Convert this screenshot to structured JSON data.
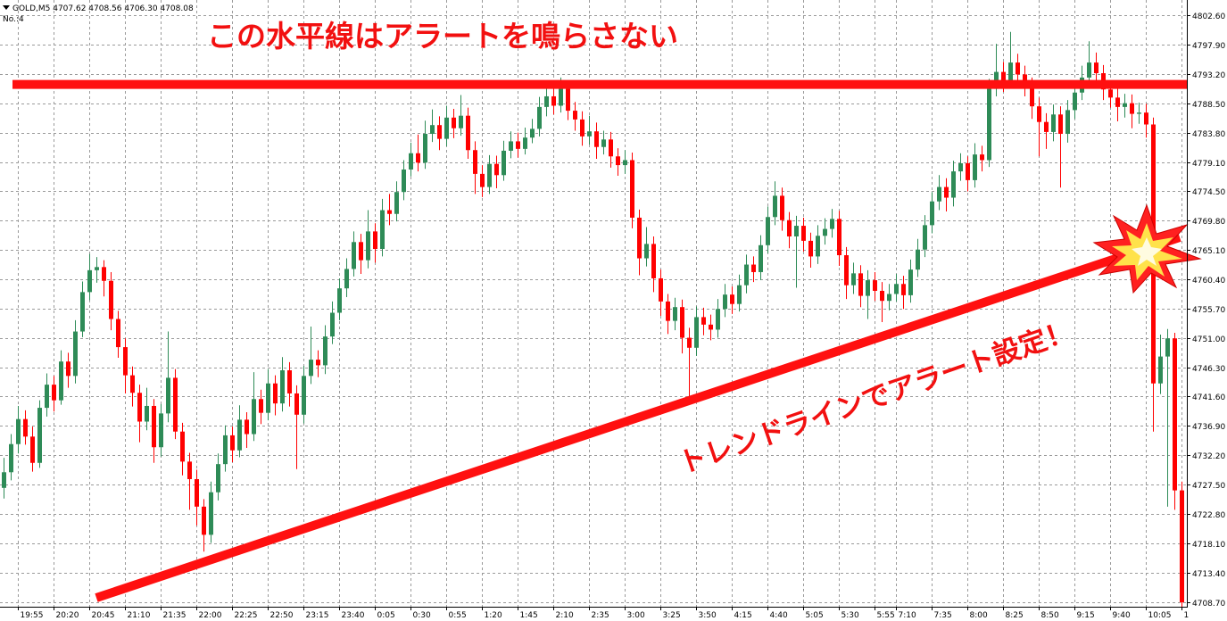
{
  "chart_data": {
    "type": "candlestick",
    "header": "GOLD,M5  4707.62 4708.56 4706.30 4708.08",
    "subheader": "No.:4",
    "annotations": [
      "この水平線はアラートを鳴らさない",
      "トレンドラインでアラート設定！"
    ],
    "up_color": "#2e8b57",
    "down_color": "#ff0000",
    "hline": 4791.5,
    "hline_color": "#ff1010",
    "grid": true,
    "ylim": [
      4708.0,
      4805.0
    ],
    "yticks": [
      {
        "value": 4802.6,
        "label": "4802.60"
      },
      {
        "value": 4797.9,
        "label": "4797.90"
      },
      {
        "value": 4793.2,
        "label": "4793.20"
      },
      {
        "value": 4788.5,
        "label": "4788.50"
      },
      {
        "value": 4783.8,
        "label": "4783.80"
      },
      {
        "value": 4779.1,
        "label": "4779.10"
      },
      {
        "value": 4774.5,
        "label": "4774.50"
      },
      {
        "value": 4769.8,
        "label": "4769.80"
      },
      {
        "value": 4765.1,
        "label": "4765.10"
      },
      {
        "value": 4760.4,
        "label": "4760.40"
      },
      {
        "value": 4755.7,
        "label": "4755.70"
      },
      {
        "value": 4751.0,
        "label": "4751.00"
      },
      {
        "value": 4746.3,
        "label": "4746.30"
      },
      {
        "value": 4741.6,
        "label": "4741.60"
      },
      {
        "value": 4736.9,
        "label": "4736.90"
      },
      {
        "value": 4732.2,
        "label": "4732.20"
      },
      {
        "value": 4727.5,
        "label": "4727.50"
      },
      {
        "value": 4722.8,
        "label": "4722.80"
      },
      {
        "value": 4718.1,
        "label": "4718.10"
      },
      {
        "value": 4713.4,
        "label": "4713.40"
      },
      {
        "value": 4708.7,
        "label": "4708.70"
      }
    ],
    "categories": [
      null,
      null,
      "19:55",
      null,
      null,
      null,
      null,
      "20:20",
      null,
      null,
      null,
      null,
      "20:45",
      null,
      null,
      null,
      null,
      "21:10",
      null,
      null,
      null,
      null,
      "21:35",
      null,
      null,
      null,
      null,
      "22:00",
      null,
      null,
      null,
      null,
      "22:25",
      null,
      null,
      null,
      null,
      "22:50",
      null,
      null,
      null,
      null,
      "23:15",
      null,
      null,
      null,
      null,
      "23:40",
      null,
      null,
      null,
      null,
      "0:05",
      null,
      null,
      null,
      null,
      "0:30",
      null,
      null,
      null,
      null,
      "0:55",
      null,
      null,
      null,
      null,
      "1:20",
      null,
      null,
      null,
      null,
      "1:45",
      null,
      null,
      null,
      null,
      "2:10",
      null,
      null,
      null,
      null,
      "2:35",
      null,
      null,
      null,
      null,
      "3:00",
      null,
      null,
      null,
      null,
      "3:25",
      null,
      null,
      null,
      null,
      "3:50",
      null,
      null,
      null,
      null,
      "4:15",
      null,
      null,
      null,
      null,
      "4:40",
      null,
      null,
      null,
      null,
      "5:05",
      null,
      null,
      null,
      null,
      "5:30",
      null,
      null,
      null,
      null,
      "5:55",
      null,
      null,
      "7:10",
      null,
      null,
      null,
      null,
      "7:35",
      null,
      null,
      null,
      null,
      "8:00",
      null,
      null,
      null,
      null,
      "8:25",
      null,
      null,
      null,
      null,
      "8:50",
      null,
      null,
      null,
      null,
      "9:15",
      null,
      null,
      null,
      null,
      "9:40",
      null,
      null,
      null,
      null,
      "10:05",
      null,
      null,
      null,
      null,
      "1"
    ],
    "open": [
      4727.0,
      4729.5,
      4734.0,
      4738.0,
      4735.2,
      4731.0,
      4739.8,
      4743.5,
      4741.0,
      4747.2,
      4744.9,
      4752.0,
      4758.3,
      4761.8,
      4762.3,
      4760.1,
      4754.0,
      4749.5,
      4745.0,
      4742.2,
      4737.6,
      4740.1,
      4733.5,
      4738.9,
      4744.6,
      4736.0,
      4731.2,
      4728.4,
      4724.0,
      4719.5,
      4726.3,
      4730.8,
      4735.4,
      4733.0,
      4737.9,
      4735.6,
      4741.2,
      4739.0,
      4743.7,
      4740.5,
      4745.8,
      4742.1,
      4738.7,
      4744.9,
      4747.5,
      4746.6,
      4751.2,
      4755.0,
      4758.9,
      4762.0,
      4766.3,
      4763.4,
      4768.0,
      4765.2,
      4771.4,
      4770.8,
      4774.3,
      4777.9,
      4780.5,
      4779.0,
      4783.6,
      4785.0,
      4782.8,
      4786.2,
      4784.5,
      4786.5,
      4781.0,
      4777.2,
      4775.1,
      4778.8,
      4777.0,
      4780.9,
      4782.4,
      4781.2,
      4783.0,
      4784.4,
      4787.9,
      4789.6,
      4788.1,
      4790.8,
      4787.3,
      4785.9,
      4783.2,
      4784.0,
      4781.5,
      4782.7,
      4780.0,
      4778.6,
      4779.4,
      4770.2,
      4763.7,
      4766.0,
      4760.5,
      4756.8,
      4753.7,
      4755.9,
      4751.0,
      4749.4,
      4754.3,
      4753.1,
      4752.3,
      4755.6,
      4757.9,
      4756.4,
      4759.4,
      4762.7,
      4761.5,
      4765.8,
      4770.3,
      4773.7,
      4769.8,
      4767.2,
      4768.9,
      4766.5,
      4764.0,
      4767.3,
      4768.4,
      4770.0,
      4764.2,
      4759.4,
      4761.3,
      4757.7,
      4760.2,
      4758.5,
      4756.9,
      4758.0,
      4759.6,
      4757.8,
      4761.9,
      4765.1,
      4769.0,
      4772.8,
      4775.1,
      4773.4,
      4777.6,
      4778.9,
      4776.2,
      4780.3,
      4779.4,
      4790.8,
      4793.5,
      4792.0,
      4795.0,
      4793.1,
      4791.2,
      4788.0,
      4785.5,
      4783.9,
      4786.7,
      4783.6,
      4787.4,
      4790.2,
      4792.6,
      4795.0,
      4793.3,
      4790.7,
      4789.4,
      4787.9,
      4788.5,
      4786.8,
      4787.0,
      4785.1,
      4743.7,
      4748.0,
      4750.9,
      4726.6
    ],
    "high": [
      4731.8,
      4735.6,
      4740.1,
      4739.4,
      4736.8,
      4741.0,
      4745.3,
      4744.9,
      4749.0,
      4748.6,
      4753.8,
      4760.0,
      4764.4,
      4763.9,
      4763.4,
      4761.5,
      4755.3,
      4750.9,
      4746.4,
      4743.5,
      4743.0,
      4741.2,
      4740.4,
      4752.0,
      4746.0,
      4737.4,
      4732.6,
      4729.9,
      4725.2,
      4728.0,
      4732.5,
      4737.0,
      4736.8,
      4740.2,
      4739.1,
      4745.5,
      4742.7,
      4746.0,
      4745.0,
      4747.9,
      4747.1,
      4743.4,
      4746.5,
      4752.8,
      4749.0,
      4753.0,
      4756.8,
      4760.5,
      4763.7,
      4768.0,
      4767.6,
      4771.4,
      4769.3,
      4773.2,
      4774.0,
      4776.0,
      4779.4,
      4782.2,
      4783.5,
      4785.7,
      4787.5,
      4786.4,
      4788.1,
      4787.6,
      4789.8,
      4787.8,
      4782.4,
      4778.6,
      4780.2,
      4780.1,
      4782.5,
      4784.0,
      4783.8,
      4784.6,
      4786.0,
      4789.5,
      4791.2,
      4790.9,
      4792.6,
      4791.9,
      4788.7,
      4787.2,
      4786.5,
      4785.4,
      4784.1,
      4783.9,
      4781.3,
      4781.0,
      4780.6,
      4771.5,
      4768.7,
      4767.2,
      4761.9,
      4758.0,
      4757.4,
      4757.1,
      4752.6,
      4756.0,
      4755.8,
      4754.7,
      4757.2,
      4759.6,
      4759.2,
      4761.1,
      4764.3,
      4764.0,
      4767.4,
      4772.0,
      4776.0,
      4775.0,
      4771.1,
      4770.5,
      4770.2,
      4767.8,
      4769.0,
      4770.1,
      4771.6,
      4771.3,
      4765.5,
      4763.0,
      4762.6,
      4761.8,
      4761.5,
      4759.9,
      4759.6,
      4761.2,
      4760.9,
      4763.5,
      4766.8,
      4770.6,
      4774.3,
      4777.0,
      4776.5,
      4779.3,
      4780.5,
      4780.0,
      4782.1,
      4781.7,
      4792.4,
      4798.0,
      4795.1,
      4799.9,
      4796.4,
      4794.5,
      4792.6,
      4789.4,
      4786.9,
      4788.3,
      4788.0,
      4789.0,
      4791.8,
      4794.5,
      4798.4,
      4796.6,
      4794.6,
      4792.1,
      4790.8,
      4790.0,
      4789.9,
      4788.6,
      4788.4,
      4786.2,
      4751.5,
      4752.4,
      4751.8,
      4728.0
    ],
    "low": [
      4725.3,
      4728.2,
      4732.5,
      4733.9,
      4729.6,
      4730.2,
      4738.4,
      4739.2,
      4740.3,
      4743.0,
      4743.7,
      4751.1,
      4757.0,
      4759.8,
      4757.6,
      4752.2,
      4747.8,
      4742.1,
      4740.0,
      4734.3,
      4736.2,
      4731.0,
      4732.0,
      4737.5,
      4734.8,
      4729.0,
      4723.5,
      4721.0,
      4716.8,
      4718.2,
      4725.0,
      4729.6,
      4731.1,
      4731.9,
      4733.4,
      4734.5,
      4737.2,
      4737.8,
      4738.6,
      4739.2,
      4740.0,
      4730.0,
      4737.3,
      4743.6,
      4744.7,
      4745.2,
      4750.0,
      4753.8,
      4757.5,
      4760.8,
      4761.2,
      4762.1,
      4763.0,
      4764.0,
      4769.0,
      4769.6,
      4773.0,
      4776.8,
      4777.6,
      4778.0,
      4782.3,
      4781.0,
      4781.6,
      4782.9,
      4783.3,
      4779.6,
      4774.0,
      4773.5,
      4774.0,
      4774.9,
      4776.1,
      4779.7,
      4779.8,
      4780.3,
      4782.1,
      4783.2,
      4786.4,
      4786.7,
      4787.0,
      4785.8,
      4784.1,
      4781.7,
      4781.9,
      4779.6,
      4780.3,
      4778.2,
      4776.9,
      4777.2,
      4768.5,
      4761.0,
      4762.4,
      4758.3,
      4754.5,
      4751.6,
      4752.2,
      4748.5,
      4741.5,
      4748.1,
      4751.4,
      4750.6,
      4751.0,
      4754.3,
      4754.8,
      4755.2,
      4758.1,
      4759.9,
      4760.2,
      4764.5,
      4769.0,
      4768.1,
      4765.3,
      4759.0,
      4764.8,
      4762.2,
      4762.8,
      4765.9,
      4767.0,
      4762.5,
      4757.2,
      4758.0,
      4755.9,
      4754.0,
      4756.9,
      4753.5,
      4755.4,
      4756.8,
      4755.6,
      4756.6,
      4760.7,
      4763.9,
      4767.7,
      4771.4,
      4771.2,
      4772.0,
      4776.1,
      4774.4,
      4775.0,
      4777.6,
      4778.3,
      4789.6,
      4790.3,
      4791.1,
      4791.5,
      4789.6,
      4786.0,
      4780.0,
      4781.2,
      4782.4,
      4775.0,
      4782.2,
      4786.0,
      4789.0,
      4791.4,
      4791.8,
      4789.0,
      4787.8,
      4785.6,
      4786.2,
      4784.5,
      4785.2,
      4783.0,
      4736.0,
      4742.0,
      4724.0,
      4723.5,
      4708.0
    ],
    "close": [
      4729.5,
      4734.0,
      4738.0,
      4735.2,
      4731.0,
      4739.8,
      4743.5,
      4741.0,
      4747.2,
      4744.9,
      4752.0,
      4758.3,
      4761.8,
      4762.3,
      4760.1,
      4754.0,
      4749.5,
      4745.0,
      4742.2,
      4737.6,
      4740.1,
      4733.5,
      4738.9,
      4744.6,
      4736.0,
      4731.2,
      4728.4,
      4724.0,
      4719.5,
      4726.3,
      4730.8,
      4735.4,
      4733.0,
      4737.9,
      4735.6,
      4741.2,
      4739.0,
      4743.7,
      4740.5,
      4745.8,
      4742.1,
      4738.7,
      4744.9,
      4747.5,
      4746.6,
      4751.2,
      4755.0,
      4758.9,
      4762.0,
      4766.3,
      4763.4,
      4768.0,
      4765.2,
      4771.4,
      4770.8,
      4774.3,
      4777.9,
      4780.5,
      4779.0,
      4783.6,
      4785.0,
      4782.8,
      4786.2,
      4784.5,
      4786.5,
      4781.0,
      4777.2,
      4775.1,
      4778.8,
      4777.0,
      4780.9,
      4782.4,
      4781.2,
      4783.0,
      4784.4,
      4787.9,
      4789.6,
      4788.1,
      4790.8,
      4787.3,
      4785.9,
      4783.2,
      4784.0,
      4781.5,
      4782.7,
      4780.0,
      4778.6,
      4779.4,
      4770.2,
      4763.7,
      4766.0,
      4760.5,
      4756.8,
      4753.7,
      4755.9,
      4751.0,
      4749.4,
      4754.3,
      4753.1,
      4752.3,
      4755.6,
      4757.9,
      4756.4,
      4759.4,
      4762.7,
      4761.5,
      4765.8,
      4770.3,
      4773.7,
      4769.8,
      4767.2,
      4768.9,
      4766.5,
      4764.0,
      4767.3,
      4768.4,
      4770.0,
      4764.2,
      4759.4,
      4761.3,
      4757.7,
      4760.2,
      4758.5,
      4756.9,
      4758.0,
      4759.6,
      4757.8,
      4761.9,
      4765.1,
      4769.0,
      4772.8,
      4775.1,
      4773.4,
      4777.6,
      4778.9,
      4776.2,
      4780.3,
      4779.4,
      4790.8,
      4793.5,
      4792.0,
      4795.0,
      4793.1,
      4791.2,
      4788.0,
      4785.5,
      4783.9,
      4786.7,
      4783.6,
      4787.4,
      4790.2,
      4792.6,
      4795.0,
      4793.3,
      4790.7,
      4789.4,
      4787.9,
      4788.5,
      4786.8,
      4787.0,
      4785.1,
      4743.7,
      4748.0,
      4750.9,
      4726.6,
      4708.7
    ]
  }
}
